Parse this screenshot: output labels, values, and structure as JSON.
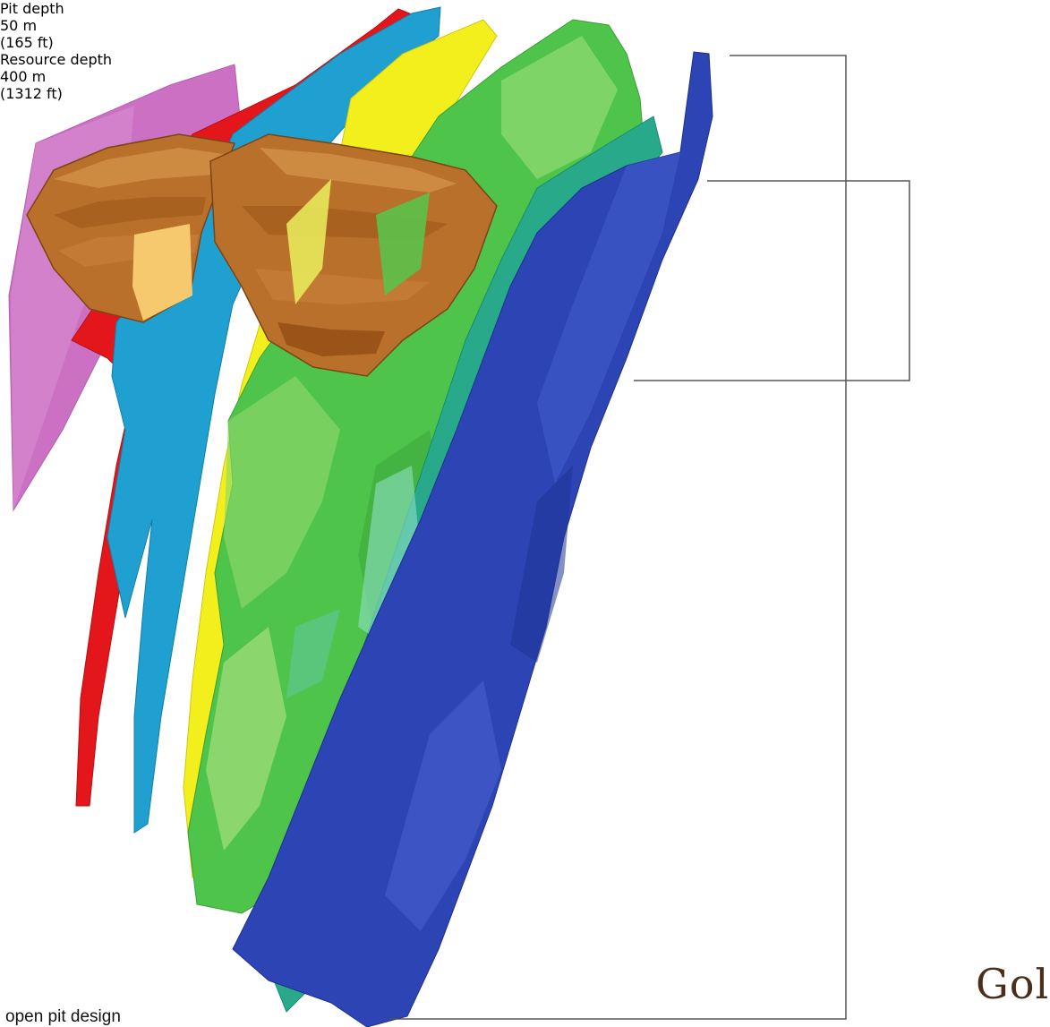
{
  "annotations": {
    "pit_depth": {
      "title": "Pit depth",
      "metric": "50 m",
      "imperial": "(165 ft)"
    },
    "resource_depth": {
      "title": "Resource depth",
      "metric": "400 m",
      "imperial": "(1312 ft)"
    }
  },
  "logo_text": "Gol",
  "caption": "open pit design",
  "colors": {
    "blue_zone": "#2d44b5",
    "green_zone": "#4fc44a",
    "teal_zone": "#27a98a",
    "yellow_zone": "#f3ef1c",
    "cyan_zone": "#1fa0d0",
    "red_zone": "#e2161b",
    "magenta_zone": "#cc70c4",
    "pit_shell": "#b8702a"
  }
}
